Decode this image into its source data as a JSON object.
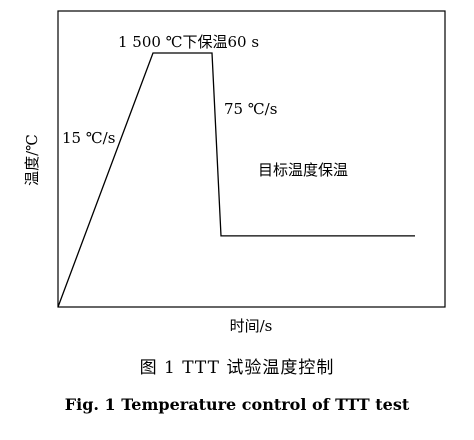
{
  "chart_data": {
    "type": "line",
    "xlabel": "时间/s",
    "ylabel": "温度/℃",
    "series": [
      {
        "points": [
          {
            "x": 0,
            "y": 0
          },
          {
            "x": 1,
            "y": 1500
          },
          {
            "x": 1.65,
            "y": 1500
          },
          {
            "x": 1.85,
            "y": 420
          },
          {
            "x": 4.2,
            "y": 420
          }
        ]
      }
    ],
    "annotations": [
      {
        "id": "heat-rate",
        "text": "15 ℃/s"
      },
      {
        "id": "hold-high",
        "text": "1 500 ℃下保温60 s"
      },
      {
        "id": "cool-rate",
        "text": "75 ℃/s"
      },
      {
        "id": "hold-target",
        "text": "目标温度保温"
      }
    ],
    "grid": false,
    "ticks": false
  },
  "captions": {
    "zh": "图 1   TTT 试验温度控制",
    "en": "Fig. 1    Temperature control of TTT test"
  },
  "colors": {
    "line": "#000000",
    "frame": "#000000",
    "background": "#ffffff"
  }
}
